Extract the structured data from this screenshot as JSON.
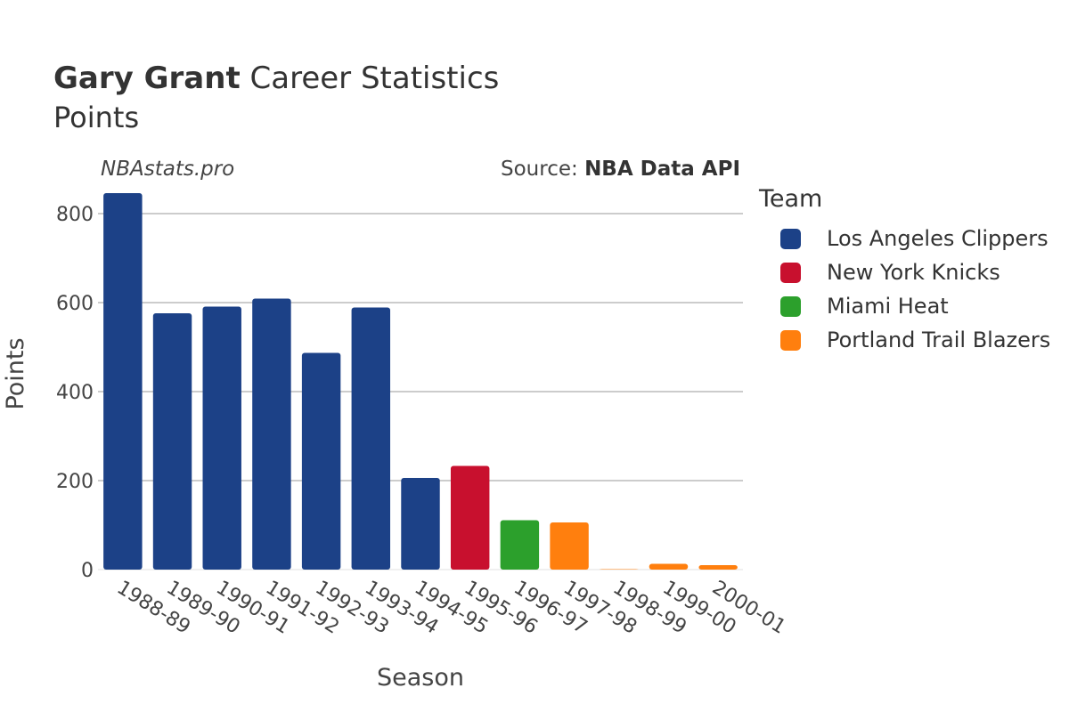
{
  "header": {
    "title_name": "Gary Grant",
    "title_rest": "Career Statistics",
    "subtitle": "Points",
    "watermark": "NBAstats.pro",
    "source_label": "Source:",
    "source_name": "NBA Data API"
  },
  "legend": {
    "title": "Team",
    "placement": "right",
    "items": [
      {
        "label": "Los Angeles Clippers",
        "color": "#1c4187"
      },
      {
        "label": "New York Knicks",
        "color": "#c8102e"
      },
      {
        "label": "Miami Heat",
        "color": "#2ca02c"
      },
      {
        "label": "Portland Trail Blazers",
        "color": "#ff7f0e"
      }
    ]
  },
  "chart_data": {
    "type": "bar",
    "xlabel": "Season",
    "ylabel": "Points",
    "ylim": [
      0,
      880
    ],
    "yticks": [
      0,
      200,
      400,
      600,
      800
    ],
    "grid": true,
    "categories": [
      "1988-89",
      "1989-90",
      "1990-91",
      "1991-92",
      "1992-93",
      "1993-94",
      "1994-95",
      "1995-96",
      "1996-97",
      "1997-98",
      "1998-99",
      "1999-00",
      "2000-01"
    ],
    "values": [
      846,
      576,
      591,
      609,
      487,
      589,
      206,
      233,
      111,
      106,
      1,
      13,
      10
    ],
    "teams": [
      "Los Angeles Clippers",
      "Los Angeles Clippers",
      "Los Angeles Clippers",
      "Los Angeles Clippers",
      "Los Angeles Clippers",
      "Los Angeles Clippers",
      "Los Angeles Clippers",
      "New York Knicks",
      "Miami Heat",
      "Portland Trail Blazers",
      "Portland Trail Blazers",
      "Portland Trail Blazers",
      "Portland Trail Blazers"
    ]
  }
}
